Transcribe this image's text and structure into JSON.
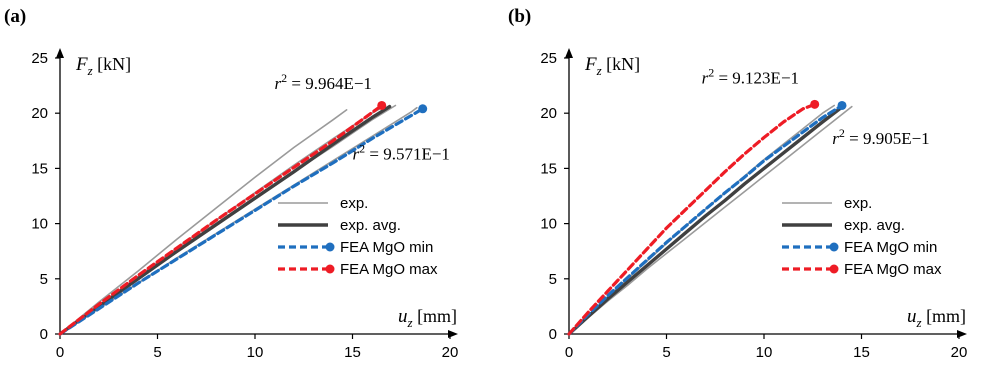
{
  "chart_data": [
    {
      "type": "line",
      "panel_label": "(a)",
      "xlabel": {
        "var": "u",
        "sub": "z",
        "unit": "[mm]"
      },
      "ylabel": {
        "var": "F",
        "sub": "z",
        "unit": "[kN]"
      },
      "xlim": [
        0,
        20
      ],
      "ylim": [
        0,
        25
      ],
      "xticks": [
        "0",
        "5",
        "10",
        "15",
        "20"
      ],
      "yticks": [
        "0",
        "5",
        "10",
        "15",
        "20",
        "25"
      ],
      "annotations": [
        {
          "lhs": "r",
          "sup": "2",
          "rhs": "= 9.964E−1",
          "x": 11.0,
          "y": 22.2
        },
        {
          "lhs": "r",
          "sup": "2",
          "rhs": "= 9.571E−1",
          "x": 15.0,
          "y": 15.8
        }
      ],
      "legend": [
        "exp.",
        "exp. avg.",
        "FEA MgO min",
        "FEA MgO max"
      ],
      "series": [
        {
          "name": "exp.",
          "style": "exp",
          "x": [
            0,
            2,
            4,
            6,
            8,
            10,
            12,
            14,
            14.7
          ],
          "y": [
            0,
            2.9,
            5.7,
            8.6,
            11.4,
            14.2,
            16.9,
            19.4,
            20.3
          ]
        },
        {
          "name": "exp.",
          "style": "exp",
          "x": [
            0,
            2,
            4,
            6,
            8,
            10,
            12,
            14,
            16,
            16.6
          ],
          "y": [
            0,
            2.6,
            5.2,
            7.8,
            10.3,
            12.8,
            15.3,
            17.7,
            20.0,
            20.6
          ]
        },
        {
          "name": "exp.",
          "style": "exp",
          "x": [
            0,
            2,
            4,
            6,
            8,
            10,
            12,
            14,
            16,
            17.2
          ],
          "y": [
            0,
            2.5,
            5.0,
            7.4,
            9.8,
            12.2,
            14.7,
            17.0,
            19.4,
            20.7
          ]
        },
        {
          "name": "exp.",
          "style": "exp",
          "x": [
            0,
            2,
            4,
            6,
            8,
            10,
            12,
            14,
            16,
            18,
            18.3
          ],
          "y": [
            0,
            2.3,
            4.6,
            6.9,
            9.1,
            11.3,
            13.5,
            15.7,
            17.9,
            20.1,
            20.5
          ]
        },
        {
          "name": "exp. avg.",
          "style": "avg",
          "x": [
            0,
            2,
            4,
            6,
            8,
            10,
            12,
            14,
            16,
            16.9
          ],
          "y": [
            0,
            2.5,
            5.0,
            7.5,
            9.9,
            12.3,
            14.7,
            17.2,
            19.6,
            20.6
          ]
        },
        {
          "name": "FEA MgO min",
          "style": "min",
          "x": [
            0,
            2,
            4,
            6,
            8,
            10,
            12,
            14,
            16,
            18.6
          ],
          "y": [
            0,
            2.3,
            4.6,
            6.8,
            9.0,
            11.2,
            13.4,
            15.5,
            17.7,
            20.4
          ]
        },
        {
          "name": "FEA MgO max",
          "style": "max",
          "x": [
            0,
            2,
            4,
            6,
            8,
            10,
            12,
            14,
            16.5
          ],
          "y": [
            0,
            2.7,
            5.3,
            7.8,
            10.3,
            12.7,
            15.1,
            17.5,
            20.7
          ]
        }
      ]
    },
    {
      "type": "line",
      "panel_label": "(b)",
      "xlabel": {
        "var": "u",
        "sub": "z",
        "unit": "[mm]"
      },
      "ylabel": {
        "var": "F",
        "sub": "z",
        "unit": "[kN]"
      },
      "xlim": [
        0,
        20
      ],
      "ylim": [
        0,
        25
      ],
      "xticks": [
        "0",
        "5",
        "10",
        "15",
        "20"
      ],
      "yticks": [
        "0",
        "5",
        "10",
        "15",
        "20",
        "25"
      ],
      "annotations": [
        {
          "lhs": "r",
          "sup": "2",
          "rhs": "= 9.123E−1",
          "x": 6.8,
          "y": 22.7
        },
        {
          "lhs": "r",
          "sup": "2",
          "rhs": "= 9.905E−1",
          "x": 13.5,
          "y": 17.2
        }
      ],
      "legend": [
        "exp.",
        "exp. avg.",
        "FEA MgO min",
        "FEA MgO max"
      ],
      "series": [
        {
          "name": "exp.",
          "style": "exp",
          "x": [
            0,
            1,
            2,
            3,
            4,
            5,
            6,
            7,
            8,
            9,
            10,
            11,
            12,
            13,
            13.6
          ],
          "y": [
            0,
            1.7,
            3.4,
            5.0,
            6.6,
            8.2,
            9.8,
            11.3,
            12.8,
            14.3,
            15.8,
            17.2,
            18.6,
            20.0,
            20.7
          ]
        },
        {
          "name": "exp.",
          "style": "exp",
          "x": [
            0,
            1,
            2,
            3,
            4,
            5,
            6,
            7,
            8,
            9,
            10,
            11,
            12,
            13,
            14.5
          ],
          "y": [
            0,
            1.5,
            3.0,
            4.4,
            5.9,
            7.3,
            8.7,
            10.1,
            11.5,
            12.9,
            14.3,
            15.7,
            17.1,
            18.5,
            20.6
          ]
        },
        {
          "name": "exp. avg.",
          "style": "avg",
          "x": [
            0,
            1,
            2,
            3,
            4,
            5,
            6,
            7,
            8,
            9,
            10,
            11,
            12,
            13,
            14.1
          ],
          "y": [
            0,
            1.6,
            3.2,
            4.7,
            6.2,
            7.7,
            9.2,
            10.7,
            12.1,
            13.6,
            15.0,
            16.4,
            17.8,
            19.2,
            20.7
          ]
        },
        {
          "name": "FEA MgO min",
          "style": "min",
          "x": [
            0,
            1,
            2,
            3,
            4,
            5,
            6,
            7,
            8,
            9,
            10,
            11,
            12,
            13,
            14.0
          ],
          "y": [
            0,
            1.8,
            3.5,
            5.1,
            6.7,
            8.3,
            9.8,
            11.3,
            12.8,
            14.2,
            15.7,
            17.0,
            18.3,
            19.6,
            20.7
          ]
        },
        {
          "name": "FEA MgO max",
          "style": "max",
          "x": [
            0,
            1,
            2,
            3,
            4,
            5,
            6,
            7,
            8,
            9,
            10,
            11,
            12,
            12.6
          ],
          "y": [
            0,
            2.0,
            3.9,
            5.8,
            7.7,
            9.6,
            11.3,
            13.0,
            14.7,
            16.3,
            17.8,
            19.2,
            20.4,
            20.8
          ]
        }
      ]
    }
  ]
}
